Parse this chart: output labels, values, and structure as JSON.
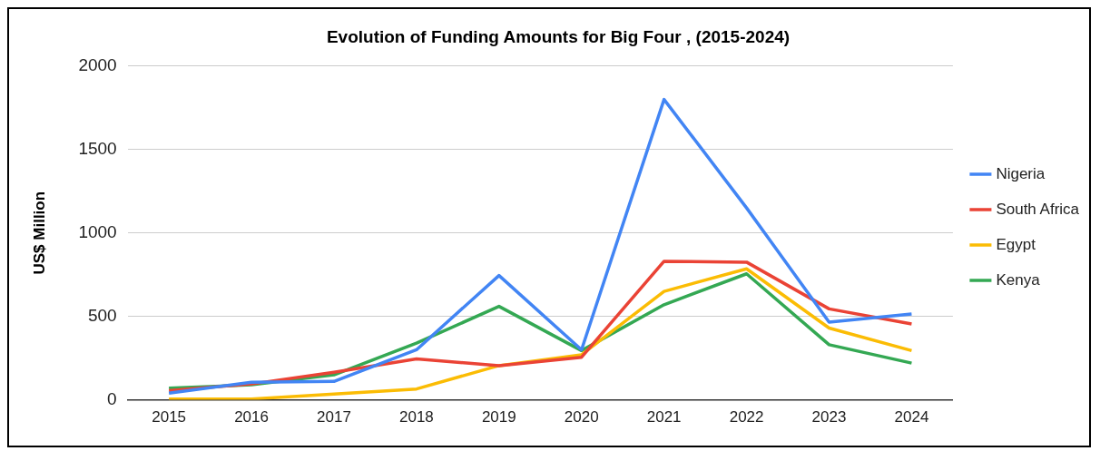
{
  "chart_data": {
    "type": "line",
    "title": "Evolution of Funding Amounts for Big Four , (2015-2024)",
    "ylabel": "US$ Million",
    "categories": [
      "2015",
      "2016",
      "2017",
      "2018",
      "2019",
      "2020",
      "2021",
      "2022",
      "2023",
      "2024"
    ],
    "series": [
      {
        "name": "Nigeria",
        "color": "#4285f4",
        "values": [
          40,
          105,
          110,
          300,
          745,
          300,
          1800,
          1150,
          465,
          515
        ]
      },
      {
        "name": "South Africa",
        "color": "#ea4335",
        "values": [
          55,
          95,
          165,
          245,
          205,
          255,
          830,
          825,
          545,
          455
        ]
      },
      {
        "name": "Egypt",
        "color": "#fbbc04",
        "values": [
          5,
          5,
          35,
          65,
          205,
          270,
          650,
          785,
          430,
          295
        ]
      },
      {
        "name": "Kenya",
        "color": "#34a853",
        "values": [
          70,
          90,
          150,
          340,
          560,
          295,
          570,
          755,
          330,
          220
        ]
      }
    ],
    "ylim": [
      0,
      2000
    ],
    "yticks": [
      0,
      500,
      1000,
      1500,
      2000
    ],
    "grid": "y",
    "legend": "right",
    "marker": "none",
    "line_style": "solid"
  }
}
